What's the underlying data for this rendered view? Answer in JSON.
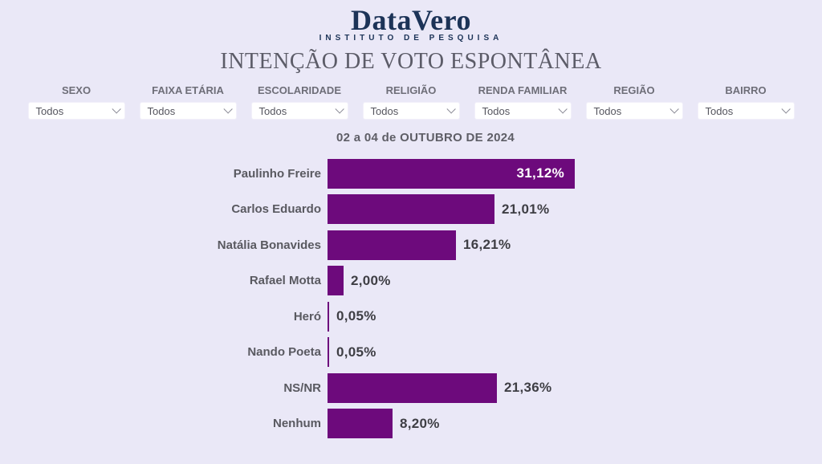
{
  "header": {
    "logo": "DataVero",
    "logo_subtitle": "INSTITUTO DE PESQUISA",
    "title": "INTENÇÃO DE VOTO ESPONTÂNEA"
  },
  "filters": [
    {
      "label": "SEXO",
      "value": "Todos"
    },
    {
      "label": "FAIXA ETÁRIA",
      "value": "Todos"
    },
    {
      "label": "ESCOLARIDADE",
      "value": "Todos"
    },
    {
      "label": "RELIGIÃO",
      "value": "Todos"
    },
    {
      "label": "RENDA FAMILIAR",
      "value": "Todos"
    },
    {
      "label": "REGIÃO",
      "value": "Todos"
    },
    {
      "label": "BAIRRO",
      "value": "Todos"
    }
  ],
  "period": "02 a 04 de OUTUBRO DE 2024",
  "chart_data": {
    "type": "bar",
    "orientation": "horizontal",
    "title": "INTENÇÃO DE VOTO ESPONTÂNEA",
    "subtitle": "02 a 04 de OUTUBRO DE 2024",
    "categories": [
      "Paulinho Freire",
      "Carlos Eduardo",
      "Natália Bonavides",
      "Rafael Motta",
      "Heró",
      "Nando Poeta",
      "NS/NR",
      "Nenhum"
    ],
    "values": [
      31.12,
      21.01,
      16.21,
      2.0,
      0.05,
      0.05,
      21.36,
      8.2
    ],
    "value_labels": [
      "31,12%",
      "21,01%",
      "16,21%",
      "2,00%",
      "0,05%",
      "0,05%",
      "21,36%",
      "8,20%"
    ],
    "xlim": [
      0,
      33
    ],
    "grid": false,
    "legend": "none",
    "bar_color": "#6d0a7c"
  },
  "colors": {
    "background": "#eae8f7",
    "bar": "#6d0a7c",
    "logo_navy": "#1c3357",
    "title_gray": "#5c5c68"
  }
}
